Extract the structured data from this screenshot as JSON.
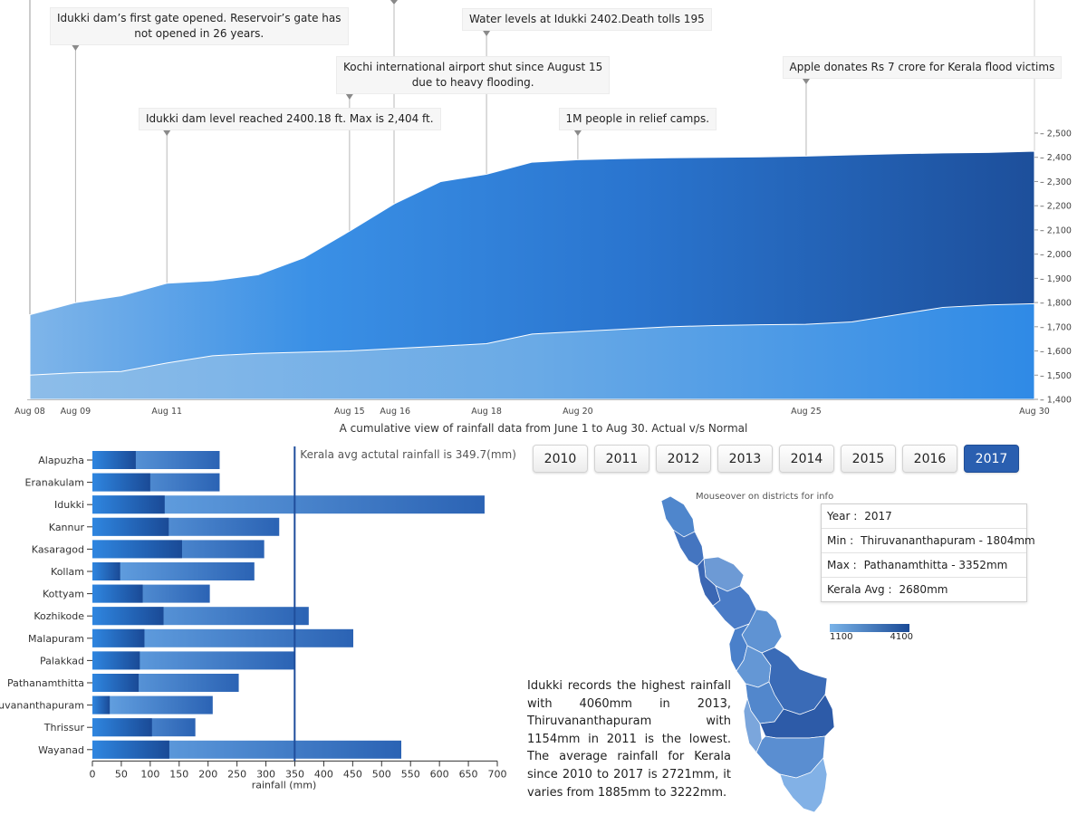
{
  "top_chart": {
    "caption": "A cumulative view of rainfall data from June 1 to Aug 30. Actual v/s Normal",
    "annotations": [
      {
        "date": 9,
        "text": "Idukki dam's first gate opened. Reservoir's gate has not opened in 26 years.",
        "line1": "Idukki dam’s first gate opened. Reservoir’s gate has",
        "line2": "not opened in 26 years."
      },
      {
        "date": 11,
        "text": "Idukki dam level reached 2400.18 ft. Max is 2,404 ft.",
        "line1": "Idukki dam level reached 2400.18 ft. Max is 2,404 ft.",
        "line2": ""
      },
      {
        "date": 15,
        "text": "Kochi international airport shut since August 15 due to heavy flooding.",
        "line1": "Kochi international airport shut since August 15",
        "line2": "due to heavy flooding."
      },
      {
        "date": 18,
        "text": "Water levels at Idukki 2402.Death tolls 195",
        "line1": "Water levels at Idukki 2402.Death tolls 195",
        "line2": ""
      },
      {
        "date": 20,
        "text": "1M people in relief camps.",
        "line1": "1M people in relief camps.",
        "line2": ""
      },
      {
        "date": 25,
        "text": "Apple donates Rs 7 crore for Kerala flood victims",
        "line1": "Apple donates Rs 7 crore for Kerala flood victims",
        "line2": ""
      }
    ]
  },
  "chart_data": [
    {
      "type": "area",
      "title": "A cumulative view of rainfall data from June 1 to Aug 30. Actual v/s Normal",
      "x_tick_labels": [
        "Aug 08",
        "Aug 09",
        "Aug 11",
        "Aug 15",
        "Aug 16",
        "Aug 18",
        "Aug 20",
        "Aug 25",
        "Aug 30"
      ],
      "x_tick_days": [
        8,
        9,
        11,
        15,
        16,
        18,
        20,
        25,
        30
      ],
      "x_range": [
        8,
        30
      ],
      "ylim": [
        1400,
        2500
      ],
      "y_ticks": [
        1400,
        1500,
        1600,
        1700,
        1800,
        1900,
        2000,
        2100,
        2200,
        2300,
        2400,
        2500
      ],
      "y_tick_labels": [
        "1,400",
        "1,500",
        "1,600",
        "1,700",
        "1,800",
        "1,900",
        "2,000",
        "2,100",
        "2,200",
        "2,300",
        "2,400",
        "2,500"
      ],
      "series": [
        {
          "role": "actual",
          "x": [
            8,
            9,
            10,
            11,
            12,
            13,
            14,
            15,
            16,
            17,
            18,
            19,
            20,
            21,
            22,
            23,
            24,
            25,
            26,
            27,
            28,
            29,
            30
          ],
          "values": [
            1750,
            1800,
            1828,
            1880,
            1890,
            1915,
            1985,
            2095,
            2210,
            2300,
            2330,
            2380,
            2390,
            2395,
            2398,
            2400,
            2402,
            2405,
            2410,
            2415,
            2418,
            2420,
            2425
          ]
        },
        {
          "role": "normal",
          "x": [
            8,
            9,
            10,
            11,
            12,
            13,
            14,
            15,
            16,
            17,
            18,
            19,
            20,
            21,
            22,
            23,
            24,
            25,
            26,
            27,
            28,
            29,
            30
          ],
          "values": [
            1500,
            1510,
            1515,
            1550,
            1580,
            1590,
            1595,
            1600,
            1610,
            1620,
            1630,
            1670,
            1680,
            1690,
            1700,
            1705,
            1708,
            1710,
            1720,
            1750,
            1780,
            1790,
            1795
          ]
        }
      ]
    },
    {
      "type": "bar",
      "orientation": "horizontal",
      "categories": [
        "Alapuzha",
        "Eranakulam",
        "Idukki",
        "Kannur",
        "Kasaragod",
        "Kollam",
        "Kottyam",
        "Kozhikode",
        "Malapuram",
        "Palakkad",
        "Pathanamthitta",
        "Thiruvananthapuram",
        "Thrissur",
        "Wayanad"
      ],
      "category_labels": [
        "Alapuzha",
        "Eranakulam",
        "Idukki",
        "Kannur",
        "Kasaragod",
        "Kollam",
        "Kottyam",
        "Kozhikode",
        "Malapuram",
        "Palakkad",
        "Pathanamthitta",
        "ruvananthapuram",
        "Thrissur",
        "Wayanad"
      ],
      "series": [
        {
          "values": [
            75,
            100,
            125,
            132,
            155,
            48,
            87,
            123,
            90,
            82,
            80,
            30,
            103,
            133
          ]
        },
        {
          "values": [
            220,
            220,
            678,
            323,
            297,
            280,
            203,
            374,
            451,
            350,
            253,
            208,
            178,
            534
          ]
        }
      ],
      "xlim": [
        0,
        700
      ],
      "x_ticks": [
        0,
        50,
        100,
        150,
        200,
        250,
        300,
        350,
        400,
        450,
        500,
        550,
        600,
        650,
        700
      ],
      "xlabel": "rainfall (mm)",
      "reference_line": {
        "value": 349.7,
        "label": "Kerala avg actutal rainfall is 349.7(mm)"
      }
    }
  ],
  "years": {
    "items": [
      "2010",
      "2011",
      "2012",
      "2013",
      "2014",
      "2015",
      "2016",
      "2017"
    ],
    "selected": "2017"
  },
  "map": {
    "hint": "Mouseover on districts for info",
    "info": {
      "year_label": "Year :",
      "year": "2017",
      "min_label": "Min :",
      "min": "Thiruvananthapuram - 1804mm",
      "max_label": "Max :",
      "max": "Pathanamthitta - 3352mm",
      "avg_label": "Kerala Avg :",
      "avg": "2680mm"
    },
    "legend": {
      "min": "1100",
      "max": "4100",
      "color_min": "#7ab3e8",
      "color_max": "#1a4a96"
    }
  },
  "insight": "Idukki records the highest rainfall with 4060mm in 2013, Thiruvananthapuram with 1154mm in 2011 is the lowest. The average rainfall for Kerala since 2010 to 2017 is 2721mm, it varies from 1885mm to 3222mm.",
  "colors": {
    "light_blue": "#7ab3e8",
    "mid_blue": "#2f86e0",
    "dark_blue": "#1a4a96",
    "axis": "#999999"
  }
}
